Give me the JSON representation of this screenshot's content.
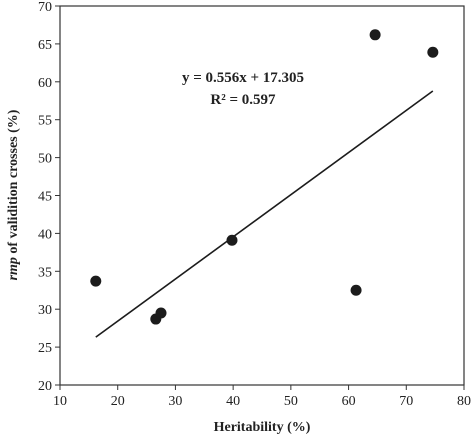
{
  "chart_data": {
    "type": "scatter",
    "title": "",
    "xlabel": "Heritability (%)",
    "ylabel_italic": "rmp",
    "ylabel_rest": " of validition crosses (%)",
    "xlim": [
      10,
      80
    ],
    "ylim": [
      20,
      70
    ],
    "xticks": [
      10,
      20,
      30,
      40,
      50,
      60,
      70,
      80
    ],
    "yticks": [
      20,
      25,
      30,
      35,
      40,
      45,
      50,
      55,
      60,
      65,
      70
    ],
    "grid": false,
    "legend": "none",
    "series": [
      {
        "points": [
          {
            "x": 16.2,
            "y": 33.7
          },
          {
            "x": 26.6,
            "y": 28.7
          },
          {
            "x": 27.5,
            "y": 29.5
          },
          {
            "x": 39.8,
            "y": 39.1
          },
          {
            "x": 61.3,
            "y": 32.5
          },
          {
            "x": 64.6,
            "y": 66.2
          },
          {
            "x": 74.6,
            "y": 63.9
          }
        ]
      }
    ],
    "trendline": {
      "slope": 0.556,
      "intercept": 17.305,
      "x_range": [
        16.2,
        74.6
      ]
    },
    "annotations": {
      "equation": "y = 0.556x + 17.305",
      "r_squared": "R² = 0.597"
    },
    "colors": {
      "marker": "#1c1c1c",
      "line": "#1c1c1c",
      "axis": "#333333"
    }
  }
}
